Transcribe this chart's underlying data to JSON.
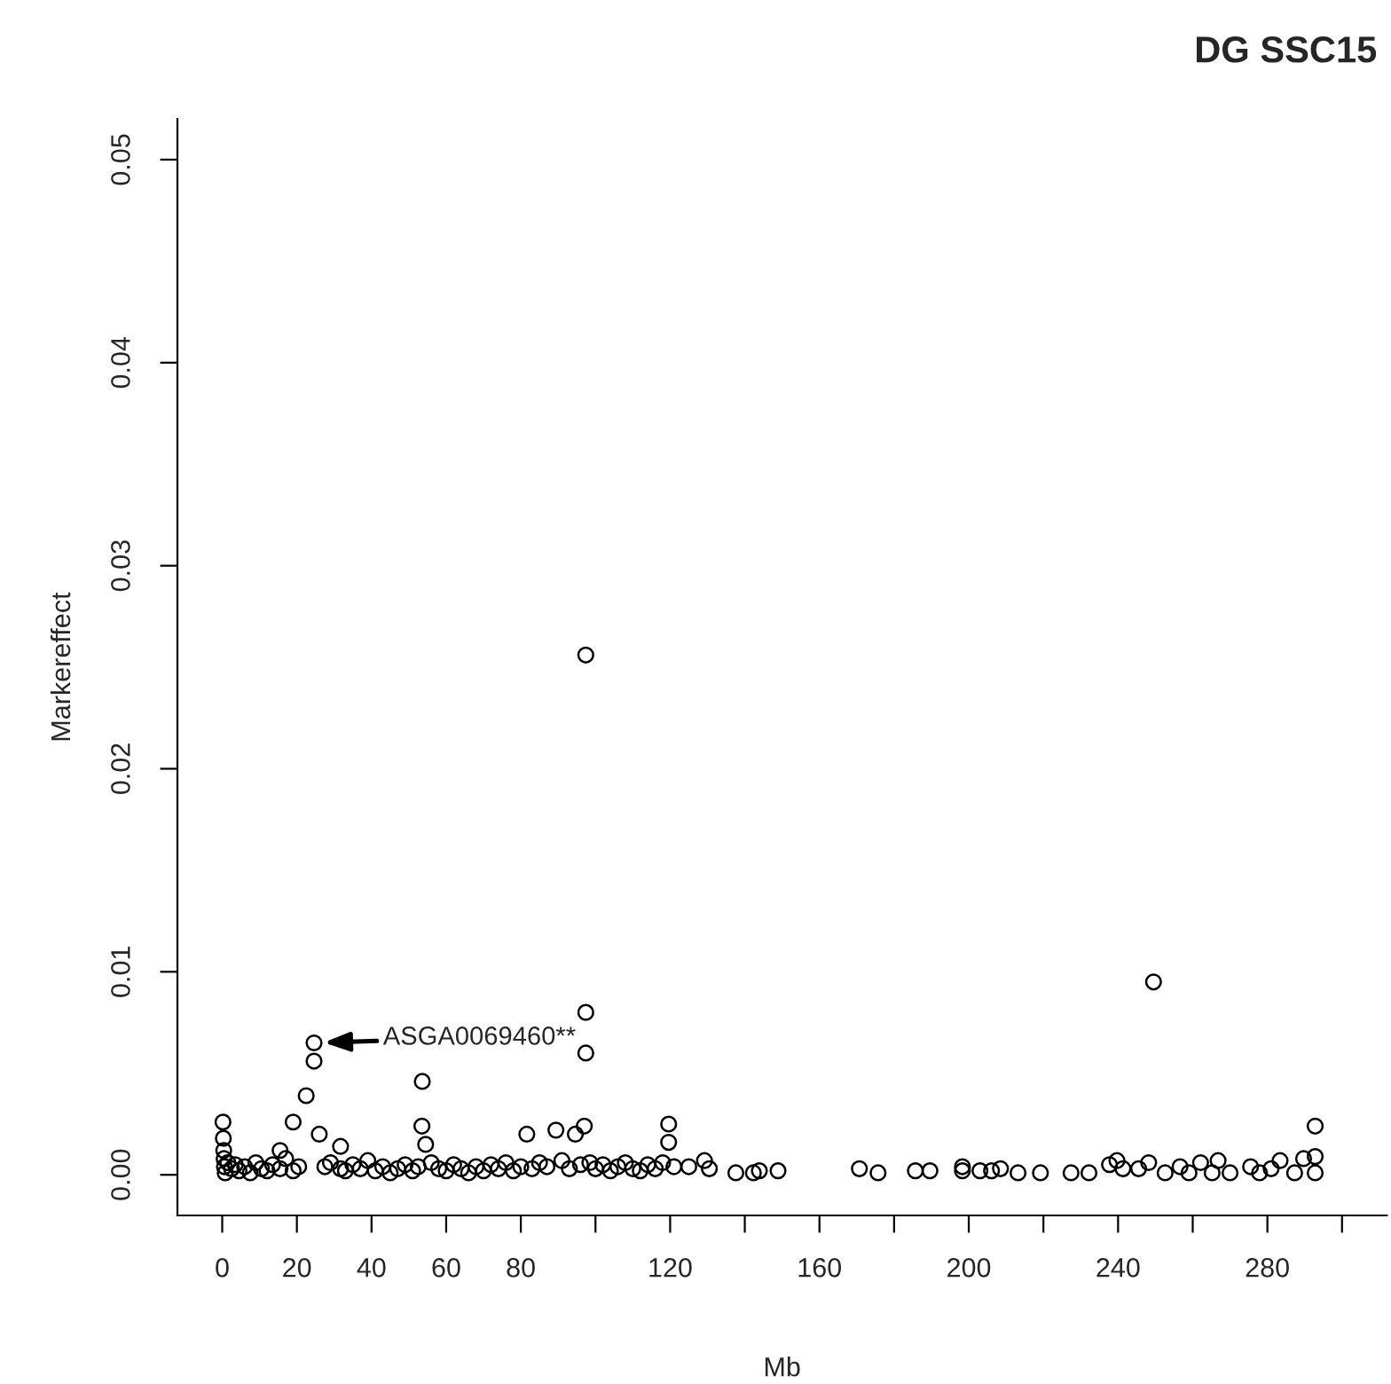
{
  "chart_data": {
    "type": "scatter",
    "title": "DG SSC15",
    "xlabel": "Mb",
    "ylabel": "Markereffect",
    "annotations": [
      {
        "text": "ASGA0069460**",
        "x": 24.6,
        "y": 0.0065
      }
    ],
    "x": [
      0.2,
      0.3,
      0.4,
      0.5,
      0.6,
      0.8,
      1.5,
      2.5,
      3.5,
      4.5,
      6,
      7.5,
      9,
      10.5,
      12,
      13.5,
      15.5,
      17,
      19,
      20.5,
      22.5,
      24.6,
      24.6,
      26,
      27.5,
      29,
      31.7,
      33,
      35,
      37,
      39,
      41,
      43,
      45,
      47,
      49,
      51,
      52.5,
      53.5,
      53.6,
      54.5,
      56,
      58,
      60,
      62,
      64,
      66,
      68,
      70,
      72,
      74,
      76,
      78,
      80,
      81.6,
      83,
      85,
      87,
      89.4,
      91,
      93,
      94.6,
      96,
      97,
      97.4,
      97.4,
      97.4,
      98.5,
      100,
      102,
      104,
      106,
      108,
      110,
      112,
      114,
      116,
      118,
      119.6,
      119.6,
      121,
      125,
      129.2,
      130.5,
      137.6,
      142.3,
      143.9,
      148.9,
      170.7,
      175.7,
      185.7,
      189.6,
      198.3,
      198.3,
      203,
      206.1,
      208.5,
      213.2,
      219.2,
      227.4,
      232.2,
      237.7,
      239.7,
      241.3,
      245.5,
      248.2,
      249.5,
      252.6,
      256.6,
      259,
      262.1,
      265.2,
      266.8,
      270,
      275.5,
      277.9,
      281,
      283.4,
      287.3,
      289.7,
      292.8,
      292.8,
      292.8,
      19,
      15.5,
      31.7
    ],
    "values": [
      0.0026,
      0.0018,
      0.0012,
      0.0008,
      0.0004,
      0.0001,
      0.0006,
      0.0003,
      0.0005,
      0.0002,
      0.0004,
      0.0001,
      0.0006,
      0.0003,
      0.0002,
      0.0005,
      0.0003,
      0.0008,
      0.0002,
      0.0004,
      0.0039,
      0.0065,
      0.0056,
      0.002,
      0.0004,
      0.0006,
      0.0003,
      0.0002,
      0.0005,
      0.0003,
      0.0007,
      0.0002,
      0.0004,
      0.0001,
      0.0003,
      0.0005,
      0.0002,
      0.0004,
      0.0024,
      0.0046,
      0.0015,
      0.0006,
      0.0003,
      0.0002,
      0.0005,
      0.0003,
      0.0001,
      0.0004,
      0.0002,
      0.0005,
      0.0003,
      0.0006,
      0.0002,
      0.0004,
      0.002,
      0.0003,
      0.0006,
      0.0004,
      0.0022,
      0.0007,
      0.0003,
      0.002,
      0.0005,
      0.0024,
      0.0256,
      0.008,
      0.006,
      0.0006,
      0.0003,
      0.0005,
      0.0002,
      0.0004,
      0.0006,
      0.0003,
      0.0002,
      0.0005,
      0.0003,
      0.0006,
      0.0025,
      0.0016,
      0.0004,
      0.0004,
      0.0007,
      0.0003,
      0.0001,
      0.0001,
      0.0002,
      0.0002,
      0.0003,
      0.0001,
      0.0002,
      0.0002,
      0.0004,
      0.0002,
      0.0002,
      0.0002,
      0.0003,
      0.0001,
      0.0001,
      0.0001,
      0.0001,
      0.0005,
      0.0007,
      0.0003,
      0.0003,
      0.0006,
      0.0095,
      0.0001,
      0.0004,
      0.0001,
      0.0006,
      0.0001,
      0.0007,
      0.0001,
      0.0004,
      0.0001,
      0.0003,
      0.0007,
      0.0001,
      0.0008,
      0.0009,
      0.0001,
      0.0024,
      0.0026,
      0.0012,
      0.0014
    ],
    "color": "#000000",
    "marker": "circle",
    "xlim": [
      -12,
      312
    ],
    "ylim": [
      -0.002,
      0.052
    ],
    "xticks": [
      0,
      20,
      40,
      60,
      80,
      {
        "value": 100,
        "label": null
      },
      120,
      {
        "value": 140,
        "label": null
      },
      160,
      {
        "value": 180,
        "label": null
      },
      200,
      {
        "value": 220,
        "label": null
      },
      240,
      {
        "value": 260,
        "label": null
      },
      280,
      {
        "value": 300,
        "label": null
      }
    ],
    "yticks": [
      {
        "value": 0,
        "label": "0.00"
      },
      {
        "value": 0.01,
        "label": "0.01"
      },
      {
        "value": 0.02,
        "label": "0.02"
      },
      {
        "value": 0.03,
        "label": "0.03"
      },
      {
        "value": 0.04,
        "label": "0.04"
      },
      {
        "value": 0.05,
        "label": "0.05"
      }
    ],
    "grid": false,
    "legend": false
  }
}
